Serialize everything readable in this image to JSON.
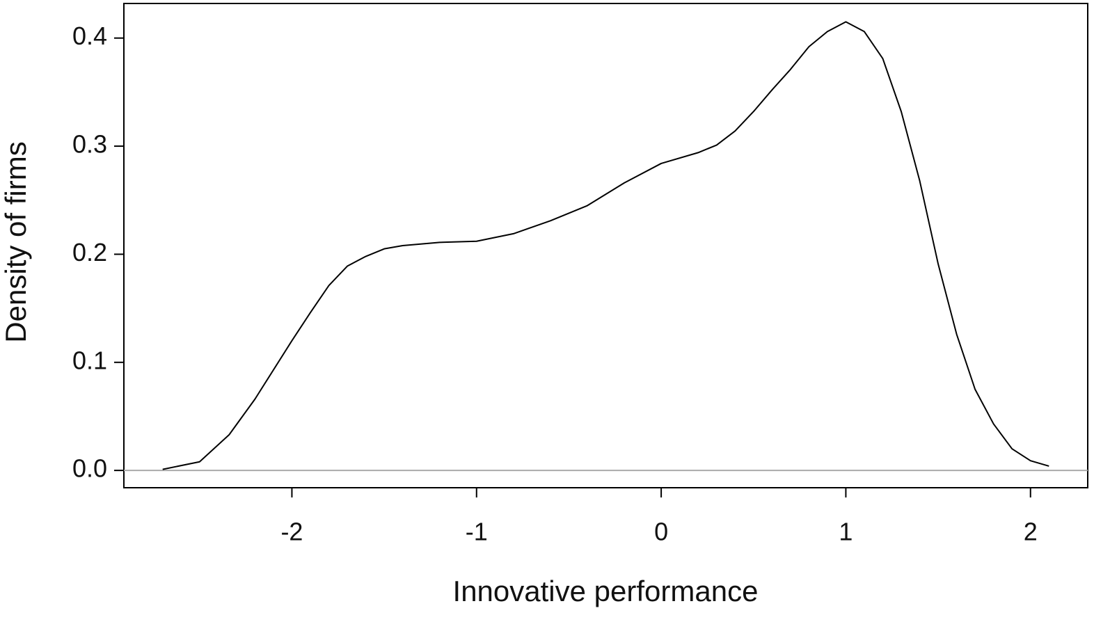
{
  "chart_data": {
    "type": "line",
    "x_label": "Innovative performance",
    "y_label": "Density of firms",
    "x": [
      -2.7,
      -2.5,
      -2.34,
      -2.2,
      -2.0,
      -1.9,
      -1.8,
      -1.7,
      -1.6,
      -1.5,
      -1.4,
      -1.2,
      -1.0,
      -0.8,
      -0.6,
      -0.4,
      -0.2,
      0.0,
      0.2,
      0.3,
      0.4,
      0.5,
      0.6,
      0.7,
      0.8,
      0.9,
      1.0,
      1.1,
      1.2,
      1.3,
      1.4,
      1.5,
      1.6,
      1.7,
      1.8,
      1.9,
      2.0,
      2.1
    ],
    "series": [
      {
        "color": "#000000",
        "values": [
          0.001,
          0.008,
          0.033,
          0.066,
          0.12,
          0.146,
          0.171,
          0.189,
          0.198,
          0.205,
          0.208,
          0.211,
          0.212,
          0.219,
          0.231,
          0.245,
          0.266,
          0.284,
          0.294,
          0.301,
          0.314,
          0.332,
          0.352,
          0.371,
          0.392,
          0.406,
          0.415,
          0.406,
          0.381,
          0.332,
          0.268,
          0.191,
          0.126,
          0.075,
          0.043,
          0.02,
          0.009,
          0.004
        ]
      }
    ],
    "xlim": [
      -2.91,
      2.31
    ],
    "ylim": [
      -0.016,
      0.432
    ],
    "xticks": [
      -2,
      -1,
      0,
      1,
      2
    ],
    "yticks": [
      {
        "value": 0,
        "label": "0.0"
      },
      {
        "value": 0.1,
        "label": "0.1"
      },
      {
        "value": 0.2,
        "label": "0.2"
      },
      {
        "value": 0.3,
        "label": "0.3"
      },
      {
        "value": 0.4,
        "label": "0.4"
      }
    ],
    "zero_line": true,
    "zero_line_color": "#aaaaaa"
  }
}
